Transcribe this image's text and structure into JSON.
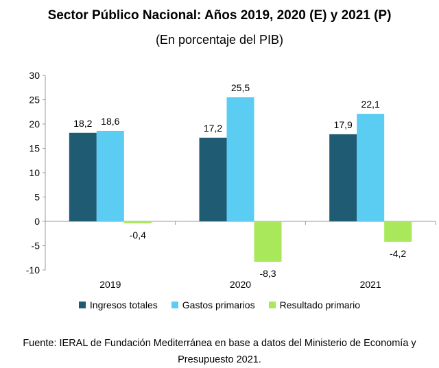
{
  "chart_data": {
    "type": "bar",
    "title": "Sector Público Nacional: Años 2019, 2020 (E) y 2021 (P)",
    "subtitle": "(En porcentaje del PIB)",
    "categories": [
      "2019",
      "2020",
      "2021"
    ],
    "series": [
      {
        "name": "Ingresos totales",
        "color": "#1f5c73",
        "values": [
          18.2,
          17.2,
          17.9
        ]
      },
      {
        "name": "Gastos primarios",
        "color": "#5ccdf2",
        "values": [
          18.6,
          25.5,
          22.1
        ]
      },
      {
        "name": "Resultado primario",
        "color": "#a8e85a",
        "values": [
          -0.4,
          -8.3,
          -4.2
        ]
      }
    ],
    "data_labels": [
      [
        "18,2",
        "18,6",
        "-0,4"
      ],
      [
        "17,2",
        "25,5",
        "-8,3"
      ],
      [
        "17,9",
        "22,1",
        "-4,2"
      ]
    ],
    "yticks": [
      "-10",
      "-5",
      "0",
      "5",
      "10",
      "15",
      "20",
      "25",
      "30"
    ],
    "ylim": [
      -10,
      30
    ],
    "xlabel": "",
    "ylabel": "",
    "legend_position": "bottom"
  },
  "source": "Fuente: IERAL de Fundación Mediterránea en base a datos del Ministerio de Economía y Presupuesto 2021."
}
